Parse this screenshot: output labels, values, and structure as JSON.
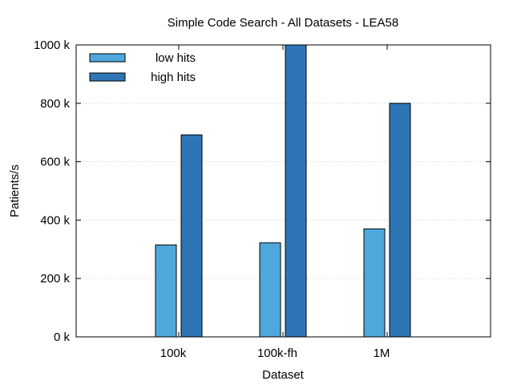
{
  "chart_data": {
    "type": "bar",
    "title": "Simple Code Search - All Datasets - LEA58",
    "xlabel": "Dataset",
    "ylabel": "Patients/s",
    "categories": [
      "100k",
      "100k-fh",
      "1M"
    ],
    "series": [
      {
        "name": "low hits",
        "color": "#4ea8dc",
        "values": [
          315000,
          322000,
          370000
        ]
      },
      {
        "name": "high hits",
        "color": "#2e75b6",
        "values": [
          692000,
          1000000,
          800000
        ]
      }
    ],
    "ylim": [
      0,
      1000000
    ],
    "yticks": [
      0,
      200000,
      400000,
      600000,
      800000,
      1000000
    ],
    "ytick_labels": [
      "0 k",
      "200 k",
      "400 k",
      "600 k",
      "800 k",
      "1000 k"
    ],
    "grid": "horizontal-dotted",
    "legend_position": "top-left"
  }
}
